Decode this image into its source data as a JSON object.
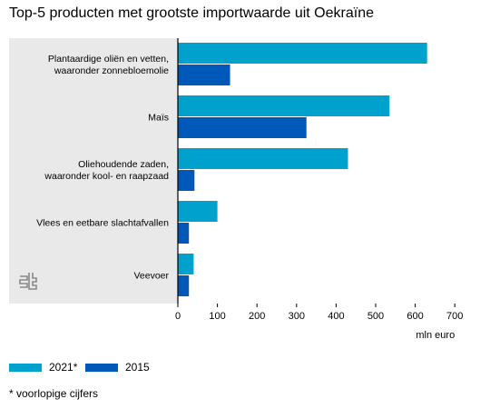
{
  "title": "Top-5 producten met grootste importwaarde uit Oekraïne",
  "footnote": "* voorlopige cijfers",
  "colors": {
    "series_2021": "#00a1cd",
    "series_2015": "#0058b8",
    "panel": "#e9e9e9",
    "axis": "#000000"
  },
  "logo_icon": "cbs-logo-icon",
  "chart_data": {
    "type": "bar",
    "orientation": "horizontal",
    "title": "Top-5 producten met grootste importwaarde uit Oekraïne",
    "xlabel": "mln euro",
    "ylabel": "",
    "xlim": [
      0,
      700
    ],
    "xticks": [
      0,
      100,
      200,
      300,
      400,
      500,
      600,
      700
    ],
    "grid": false,
    "legend_position": "bottom-left",
    "categories": [
      [
        "Plantaardige oliën en vetten,",
        "waaronder zonnebloemolie"
      ],
      [
        "Maïs"
      ],
      [
        "Oliehoudende zaden,",
        "waaronder kool- en raapzaad"
      ],
      [
        "Vlees en eetbare slachtafvallen"
      ],
      [
        "Veevoer"
      ]
    ],
    "series": [
      {
        "name": "2021*",
        "color": "#00a1cd",
        "values": [
          630,
          535,
          430,
          100,
          40
        ]
      },
      {
        "name": "2015",
        "color": "#0058b8",
        "values": [
          132,
          325,
          42,
          28,
          28
        ]
      }
    ]
  }
}
